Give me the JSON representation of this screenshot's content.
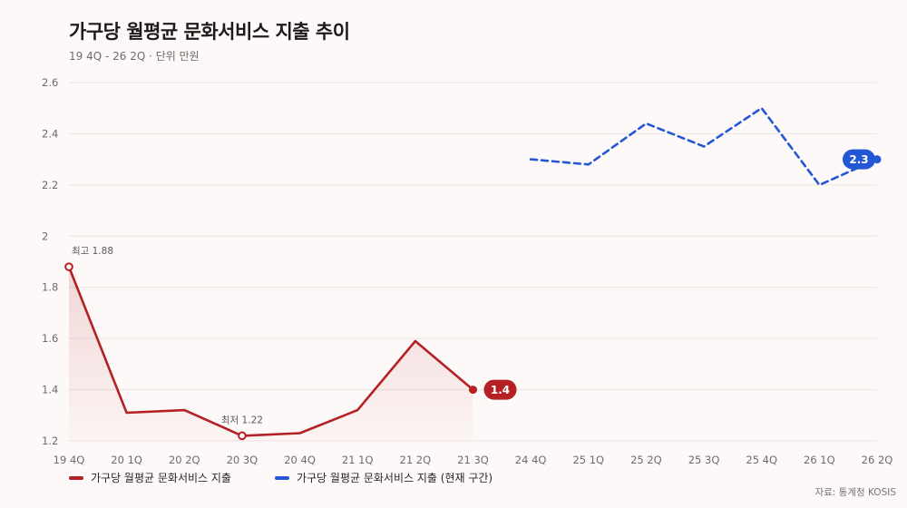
{
  "header": {
    "title": "가구당 월평균 문화서비스 지출 추이",
    "subtitle": "19 4Q - 26 2Q · 단위 만원"
  },
  "legend": {
    "series1": "가구당 월평균 문화서비스 지출",
    "series2": "가구당 월평균 문화서비스 지출 (현재 구간)"
  },
  "source": "자료: 통계청 KOSIS",
  "colors": {
    "series1": "#b42024",
    "series2": "#2457d6",
    "grid": "#ebe4e3",
    "axis_text": "#6f6a6a"
  },
  "chart_data": {
    "type": "line",
    "categories": [
      "19 4Q",
      "20 1Q",
      "20 2Q",
      "20 3Q",
      "20 4Q",
      "21 1Q",
      "21 2Q",
      "21 3Q",
      "24 4Q",
      "25 1Q",
      "25 2Q",
      "25 3Q",
      "25 4Q",
      "26 1Q",
      "26 2Q"
    ],
    "ylim": [
      1.2,
      2.6
    ],
    "yticks": [
      1.2,
      1.4,
      1.6,
      1.8,
      2,
      2.2,
      2.4,
      2.6
    ],
    "grid": true,
    "legend_position": "bottom-left",
    "series": [
      {
        "name": "가구당 월평균 문화서비스 지출",
        "style": "solid-area",
        "values": [
          1.88,
          1.31,
          1.32,
          1.22,
          1.23,
          1.32,
          1.59,
          1.4,
          null,
          null,
          null,
          null,
          null,
          null,
          null
        ]
      },
      {
        "name": "가구당 월평균 문화서비스 지출 (현재 구간)",
        "style": "dashed",
        "values": [
          null,
          null,
          null,
          null,
          null,
          null,
          null,
          null,
          2.3,
          2.28,
          2.44,
          2.35,
          2.5,
          2.2,
          2.3
        ]
      }
    ],
    "annotations": [
      {
        "series": 0,
        "index": 0,
        "text": "최고 1.88",
        "kind": "max"
      },
      {
        "series": 0,
        "index": 3,
        "text": "최저 1.22",
        "kind": "min"
      },
      {
        "series": 0,
        "index": 7,
        "text": "1.4",
        "kind": "end"
      },
      {
        "series": 1,
        "index": 14,
        "text": "2.3",
        "kind": "end"
      }
    ]
  }
}
